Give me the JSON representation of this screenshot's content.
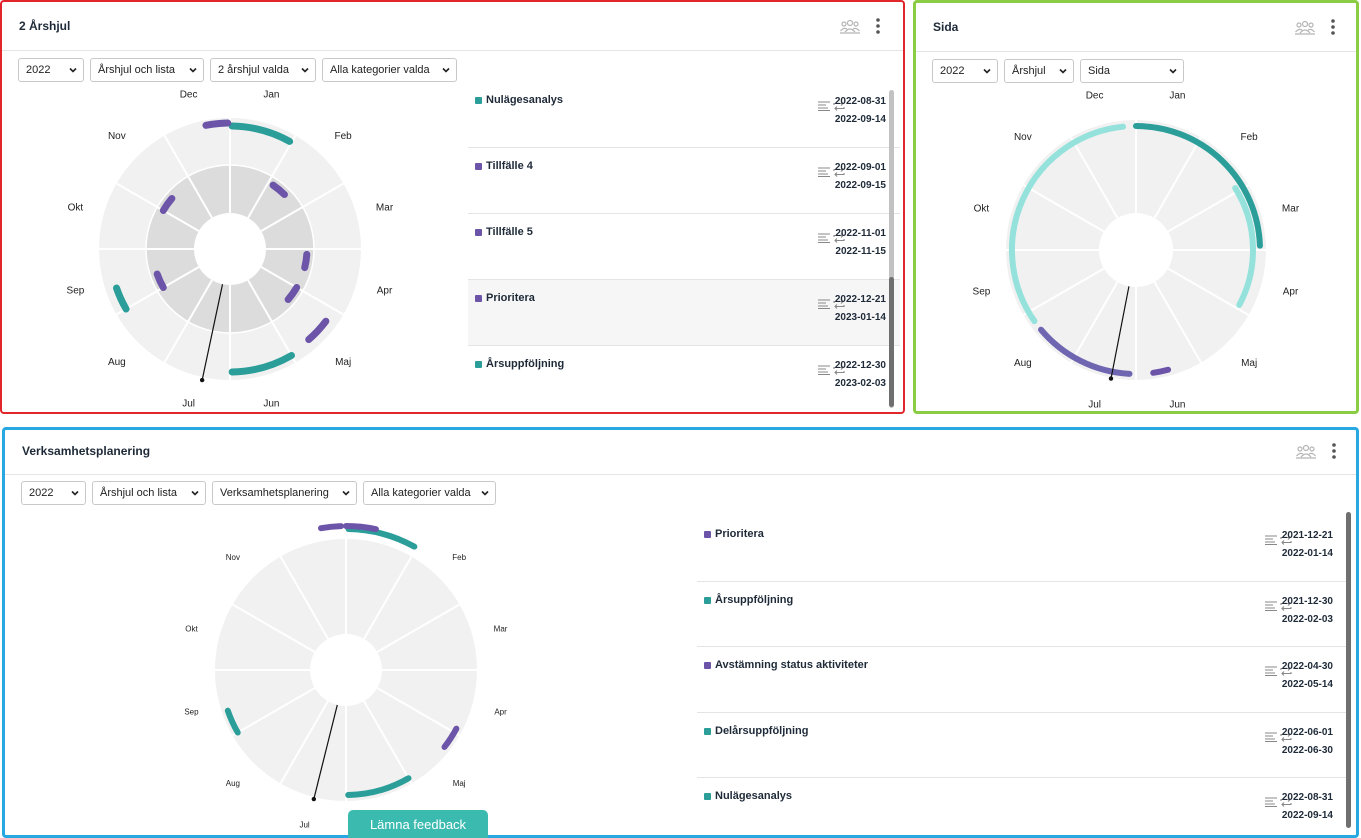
{
  "colors": {
    "teal": "#2b9e99",
    "teal_light": "#95e2dc",
    "purple": "#6c55a8",
    "purple_mid": "#6e66b0",
    "red_border": "#e0262b",
    "green_border": "#8bcc45",
    "blue_border": "#27a8e0"
  },
  "month_labels": [
    "Jan",
    "Feb",
    "Mar",
    "Apr",
    "Maj",
    "Jun",
    "Jul",
    "Aug",
    "Sep",
    "Okt",
    "Nov",
    "Dec"
  ],
  "widget_arshjul": {
    "title": "2 Årshjul",
    "header_icons": [
      "group-icon",
      "more-vertical-icon"
    ],
    "filters": [
      "2022",
      "Årshjul och lista",
      "2 årshjul valda",
      "Alla kategorier valda"
    ],
    "items": [
      {
        "name": "Nulägesanalys",
        "start": "2022-08-31",
        "end": "2022-09-14",
        "color": "teal"
      },
      {
        "name": "Tillfälle 4",
        "start": "2022-09-01",
        "end": "2022-09-15",
        "color": "purple"
      },
      {
        "name": "Tillfälle 5",
        "start": "2022-11-01",
        "end": "2022-11-15",
        "color": "purple"
      },
      {
        "name": "Prioritera",
        "start": "2022-12-21",
        "end": "2023-01-14",
        "color": "purple",
        "highlighted": true
      },
      {
        "name": "Årsuppföljning",
        "start": "2022-12-30",
        "end": "2023-02-03",
        "color": "teal"
      }
    ]
  },
  "widget_sida": {
    "title": "Sida",
    "header_icons": [
      "group-icon",
      "more-vertical-icon"
    ],
    "filters": [
      "2022",
      "Årshjul",
      "Sida"
    ]
  },
  "widget_verksamhet": {
    "title": "Verksamhetsplanering",
    "header_icons": [
      "group-icon",
      "more-vertical-icon"
    ],
    "filters": [
      "2022",
      "Årshjul och lista",
      "Verksamhetsplanering",
      "Alla kategorier valda"
    ],
    "items": [
      {
        "name": "Prioritera",
        "start": "2021-12-21",
        "end": "2022-01-14",
        "color": "purple"
      },
      {
        "name": "Årsuppföljning",
        "start": "2021-12-30",
        "end": "2022-02-03",
        "color": "teal"
      },
      {
        "name": "Avstämning status aktiviteter",
        "start": "2022-04-30",
        "end": "2022-05-14",
        "color": "purple"
      },
      {
        "name": "Delårsuppföljning",
        "start": "2022-06-01",
        "end": "2022-06-30",
        "color": "teal"
      },
      {
        "name": "Nulägesanalys",
        "start": "2022-08-31",
        "end": "2022-09-14",
        "color": "teal"
      }
    ]
  },
  "feedback_label": "Lämna feedback"
}
